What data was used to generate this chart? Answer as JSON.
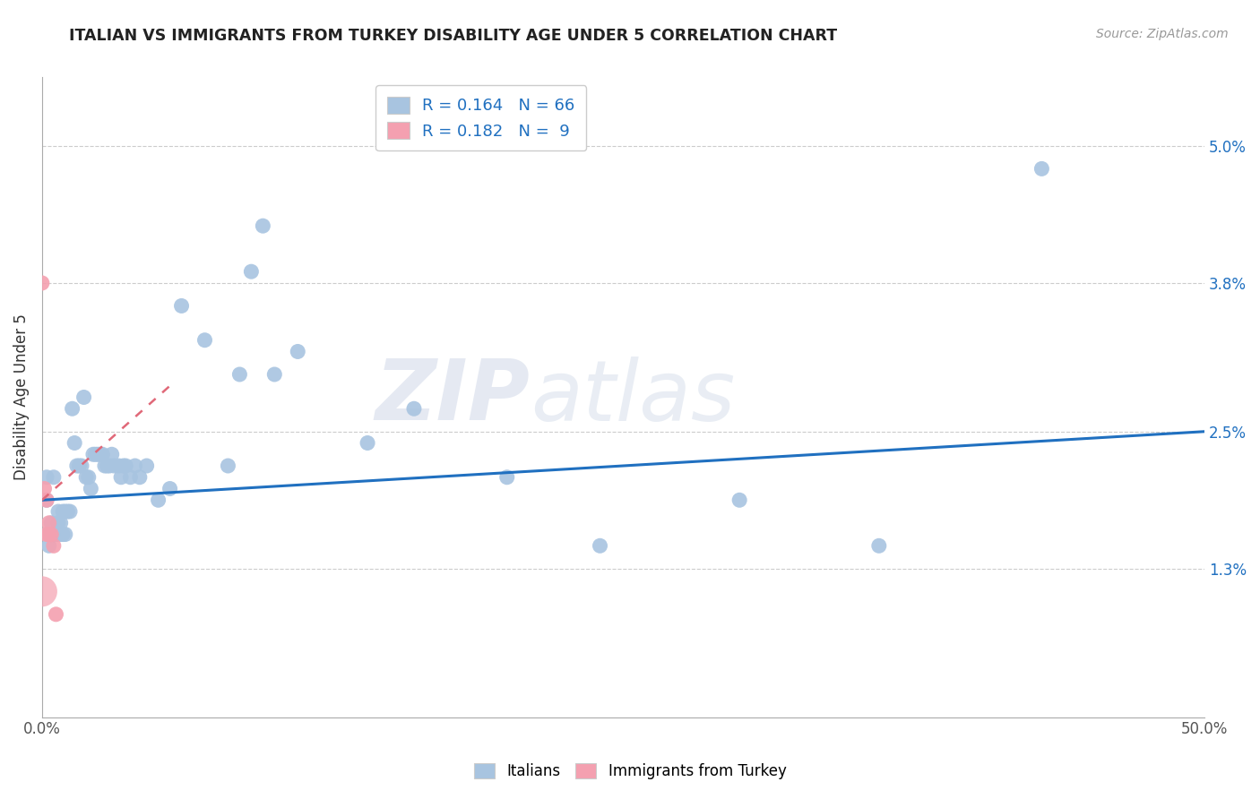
{
  "title": "ITALIAN VS IMMIGRANTS FROM TURKEY DISABILITY AGE UNDER 5 CORRELATION CHART",
  "source": "Source: ZipAtlas.com",
  "ylabel": "Disability Age Under 5",
  "xlim": [
    0.0,
    0.5
  ],
  "ylim": [
    0.0,
    0.056
  ],
  "xticks": [
    0.0,
    0.05,
    0.1,
    0.15,
    0.2,
    0.25,
    0.3,
    0.35,
    0.4,
    0.45,
    0.5
  ],
  "xticklabels": [
    "0.0%",
    "",
    "",
    "",
    "",
    "",
    "",
    "",
    "",
    "",
    "50.0%"
  ],
  "ytick_positions": [
    0.013,
    0.025,
    0.038,
    0.05
  ],
  "ytick_labels": [
    "1.3%",
    "2.5%",
    "3.8%",
    "5.0%"
  ],
  "legend_italian_R": "0.164",
  "legend_italian_N": "66",
  "legend_turkey_R": "0.182",
  "legend_turkey_N": " 9",
  "italian_color": "#a8c4e0",
  "turkey_color": "#f4a0b0",
  "trendline_italian_color": "#2070c0",
  "trendline_turkey_color": "#e06878",
  "background_color": "#ffffff",
  "grid_color": "#cccccc",
  "watermark_zip": "ZIP",
  "watermark_atlas": "atlas",
  "italians_x": [
    0.002,
    0.002,
    0.003,
    0.003,
    0.003,
    0.004,
    0.004,
    0.005,
    0.005,
    0.005,
    0.006,
    0.006,
    0.007,
    0.007,
    0.008,
    0.008,
    0.009,
    0.009,
    0.01,
    0.01,
    0.011,
    0.012,
    0.013,
    0.014,
    0.015,
    0.016,
    0.017,
    0.018,
    0.019,
    0.02,
    0.021,
    0.022,
    0.023,
    0.024,
    0.025,
    0.026,
    0.027,
    0.028,
    0.029,
    0.03,
    0.031,
    0.033,
    0.034,
    0.035,
    0.036,
    0.038,
    0.04,
    0.042,
    0.045,
    0.05,
    0.055,
    0.06,
    0.07,
    0.08,
    0.085,
    0.09,
    0.095,
    0.1,
    0.11,
    0.14,
    0.16,
    0.2,
    0.24,
    0.3,
    0.36,
    0.43
  ],
  "italians_y": [
    0.021,
    0.019,
    0.016,
    0.016,
    0.015,
    0.017,
    0.016,
    0.021,
    0.016,
    0.016,
    0.016,
    0.016,
    0.018,
    0.017,
    0.017,
    0.016,
    0.018,
    0.016,
    0.018,
    0.016,
    0.018,
    0.018,
    0.027,
    0.024,
    0.022,
    0.022,
    0.022,
    0.028,
    0.021,
    0.021,
    0.02,
    0.023,
    0.023,
    0.023,
    0.023,
    0.023,
    0.022,
    0.022,
    0.022,
    0.023,
    0.022,
    0.022,
    0.021,
    0.022,
    0.022,
    0.021,
    0.022,
    0.021,
    0.022,
    0.019,
    0.02,
    0.036,
    0.033,
    0.022,
    0.03,
    0.039,
    0.043,
    0.03,
    0.032,
    0.024,
    0.027,
    0.021,
    0.015,
    0.019,
    0.015,
    0.048
  ],
  "turkey_x": [
    0.0,
    0.001,
    0.002,
    0.002,
    0.003,
    0.003,
    0.004,
    0.005,
    0.006
  ],
  "turkey_y": [
    0.038,
    0.02,
    0.019,
    0.016,
    0.017,
    0.016,
    0.016,
    0.015,
    0.009
  ],
  "turkey_large_x": [
    0.0
  ],
  "turkey_large_y": [
    0.011
  ],
  "italian_trendline_x": [
    0.0,
    0.5
  ],
  "italian_trendline_y": [
    0.019,
    0.025
  ],
  "turkey_trendline_x": [
    0.0,
    0.055
  ],
  "turkey_trendline_y": [
    0.019,
    0.029
  ]
}
